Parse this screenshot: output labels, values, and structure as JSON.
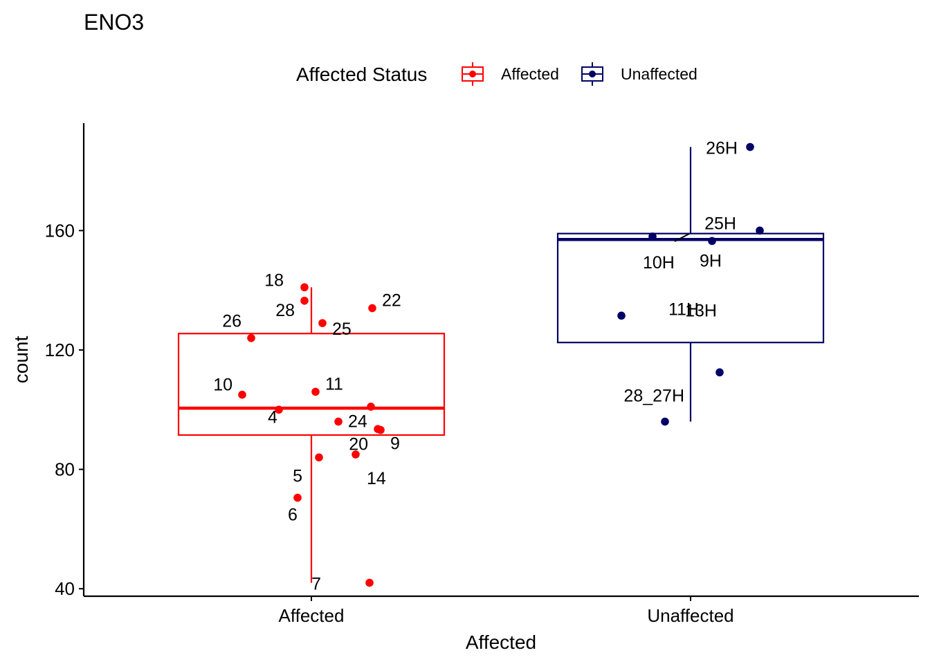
{
  "chart_data": {
    "type": "boxplot",
    "title": "ENO3",
    "xlabel": "Affected",
    "ylabel": "count",
    "ylim": [
      37.5,
      196
    ],
    "yticks": [
      40,
      80,
      120,
      160
    ],
    "categories": [
      "Affected",
      "Unaffected"
    ],
    "legend": {
      "title": "Affected Status",
      "position": "top",
      "entries": [
        {
          "name": "Affected",
          "color": "#ff0000"
        },
        {
          "name": "Unaffected",
          "color": "#000066"
        }
      ]
    },
    "grid": false,
    "boxes": [
      {
        "category": "Affected",
        "color": "#ff0000",
        "min": 42,
        "q1": 91.5,
        "median": 100.5,
        "q3": 125.5,
        "max": 141
      },
      {
        "category": "Unaffected",
        "color": "#000066",
        "min": 96,
        "q1": 122.5,
        "median": 157,
        "q3": 159,
        "max": 188
      }
    ],
    "points": [
      {
        "group": "Affected",
        "label": "18",
        "value": 141
      },
      {
        "group": "Affected",
        "label": "28",
        "value": 136.5
      },
      {
        "group": "Affected",
        "label": "22",
        "value": 134
      },
      {
        "group": "Affected",
        "label": "25",
        "value": 129
      },
      {
        "group": "Affected",
        "label": "26",
        "value": 124
      },
      {
        "group": "Affected",
        "label": "10",
        "value": 105
      },
      {
        "group": "Affected",
        "label": "11",
        "value": 106
      },
      {
        "group": "Affected",
        "label": "4",
        "value": 100
      },
      {
        "group": "Affected",
        "label": "24",
        "value": 96
      },
      {
        "group": "Affected",
        "label": "",
        "value": 101
      },
      {
        "group": "Affected",
        "label": "20",
        "value": 93.5
      },
      {
        "group": "Affected",
        "label": "9",
        "value": 93.2
      },
      {
        "group": "Affected",
        "label": "5",
        "value": 84
      },
      {
        "group": "Affected",
        "label": "14",
        "value": 85
      },
      {
        "group": "Affected",
        "label": "6",
        "value": 70.5
      },
      {
        "group": "Affected",
        "label": "7",
        "value": 42
      },
      {
        "group": "Unaffected",
        "label": "26H",
        "value": 188
      },
      {
        "group": "Unaffected",
        "label": "25H",
        "value": 160
      },
      {
        "group": "Unaffected",
        "label": "10H",
        "value": 158
      },
      {
        "group": "Unaffected",
        "label": "9H",
        "value": 156.5
      },
      {
        "group": "Unaffected",
        "label": "11H",
        "value": 131.5
      },
      {
        "group": "Unaffected",
        "label": "13H",
        "value": 112.5
      },
      {
        "group": "Unaffected",
        "label": "28_27H",
        "value": 96
      }
    ]
  }
}
